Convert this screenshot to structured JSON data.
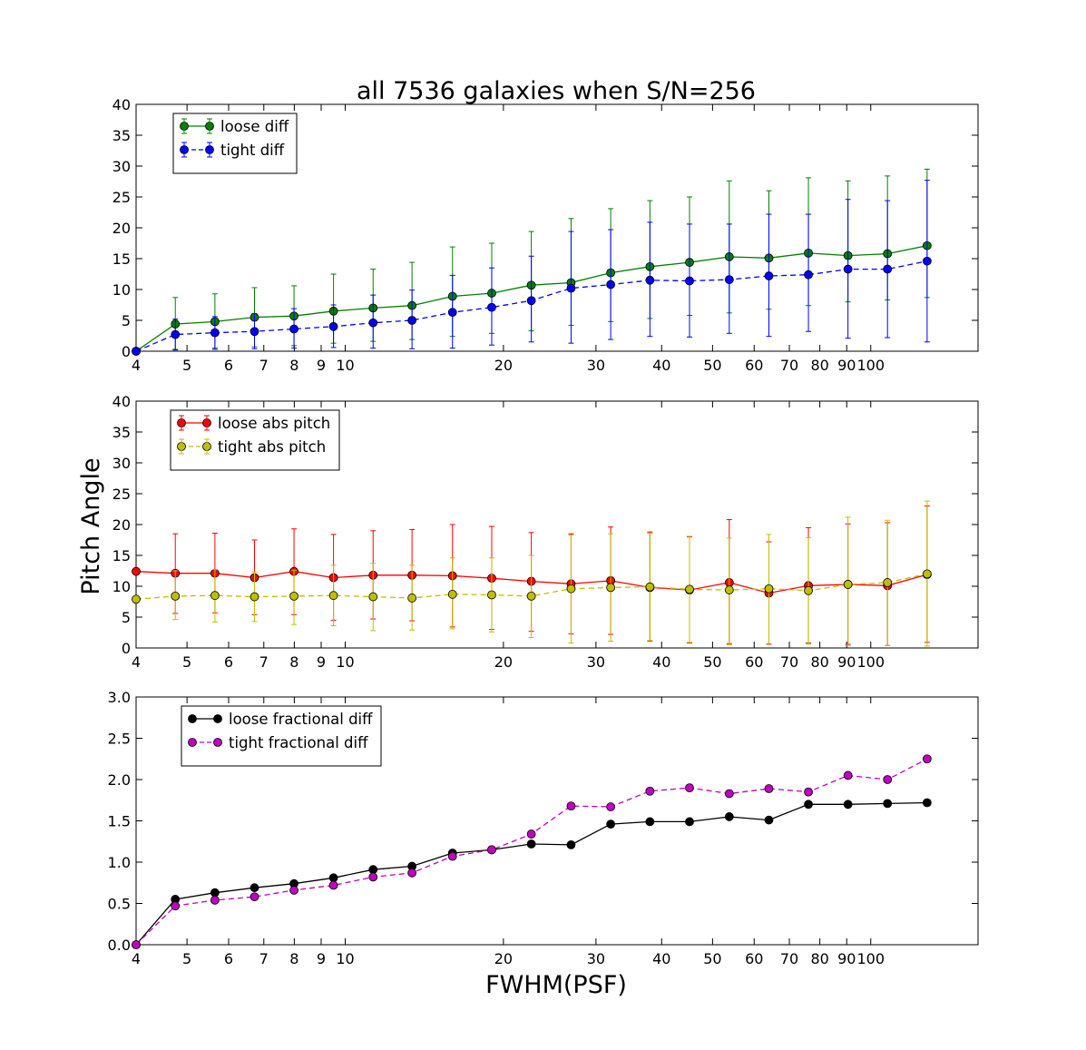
{
  "figure": {
    "title": "all 7536 galaxies when S/N=256",
    "ylabel": "Pitch Angle",
    "xlabel": "FWHM(PSF)"
  },
  "chart_data": [
    {
      "type": "line",
      "name": "top",
      "xscale": "log",
      "xlim": [
        4,
        160
      ],
      "ylim": [
        0,
        40
      ],
      "yticks": [
        "0",
        "5",
        "10",
        "15",
        "20",
        "25",
        "30",
        "35",
        "40"
      ],
      "xticks": [
        {
          "value": 4,
          "label": "4"
        },
        {
          "value": 5,
          "label": "5"
        },
        {
          "value": 6,
          "label": "6"
        },
        {
          "value": 7,
          "label": "7"
        },
        {
          "value": 8,
          "label": "8"
        },
        {
          "value": 9,
          "label": "9"
        },
        {
          "value": 10,
          "label": "10"
        },
        {
          "value": 20,
          "label": "20"
        },
        {
          "value": 30,
          "label": "30"
        },
        {
          "value": 40,
          "label": "40"
        },
        {
          "value": 50,
          "label": "50"
        },
        {
          "value": 60,
          "label": "60"
        },
        {
          "value": 70,
          "label": "70"
        },
        {
          "value": 80,
          "label": "80"
        },
        {
          "value": 90,
          "label": "90"
        },
        {
          "value": 100,
          "label": "100"
        }
      ],
      "x": [
        4,
        4.75,
        5.65,
        6.72,
        7.99,
        9.5,
        11.3,
        13.4,
        16.0,
        19.0,
        22.6,
        26.9,
        32.0,
        38.0,
        45.2,
        53.8,
        64.0,
        76.1,
        90.5,
        107.6,
        128.0
      ],
      "legend": "upper-left",
      "series": [
        {
          "name": "loose diff",
          "color": "#008000",
          "dashed": false,
          "errorbars": true,
          "values": [
            0,
            4.4,
            4.8,
            5.5,
            5.7,
            6.5,
            7.0,
            7.4,
            8.9,
            9.4,
            10.7,
            11.1,
            12.7,
            13.7,
            14.4,
            15.3,
            15.1,
            15.9,
            15.5,
            15.8,
            17.1
          ],
          "err_lo": [
            0,
            0.3,
            0.5,
            0.7,
            0.9,
            1.3,
            1.6,
            1.9,
            2.4,
            2.9,
            3.3,
            4.2,
            4.8,
            5.3,
            5.8,
            6.2,
            6.8,
            7.4,
            8.0,
            8.3,
            8.7
          ],
          "err_hi": [
            0,
            8.7,
            9.3,
            10.3,
            10.6,
            12.5,
            13.3,
            14.4,
            16.9,
            17.5,
            19.4,
            21.5,
            23.1,
            24.4,
            25.0,
            27.6,
            26.0,
            28.1,
            27.6,
            28.4,
            29.5
          ]
        },
        {
          "name": "tight diff",
          "color": "#0000ff",
          "dashed": true,
          "errorbars": true,
          "values": [
            0,
            2.7,
            3.0,
            3.2,
            3.6,
            4.0,
            4.6,
            5.0,
            6.3,
            7.1,
            8.2,
            10.2,
            10.8,
            11.5,
            11.4,
            11.6,
            12.2,
            12.4,
            13.3,
            13.3,
            14.6
          ],
          "err_lo": [
            0,
            0.2,
            0.3,
            0.4,
            0.5,
            0.6,
            0.5,
            0.4,
            0.5,
            1.0,
            1.5,
            1.3,
            1.9,
            2.4,
            2.3,
            2.9,
            2.4,
            3.2,
            2.1,
            2.2,
            1.5
          ],
          "err_hi": [
            0,
            5.2,
            5.6,
            6.1,
            6.9,
            7.5,
            9.1,
            9.9,
            12.3,
            13.5,
            15.4,
            19.4,
            19.7,
            20.9,
            20.6,
            20.6,
            22.2,
            22.2,
            24.6,
            24.4,
            27.7
          ]
        }
      ]
    },
    {
      "type": "line",
      "name": "middle",
      "xscale": "log",
      "xlim": [
        4,
        160
      ],
      "ylim": [
        0,
        40
      ],
      "yticks": [
        "0",
        "5",
        "10",
        "15",
        "20",
        "25",
        "30",
        "35",
        "40"
      ],
      "xticks": [
        {
          "value": 4,
          "label": "4"
        },
        {
          "value": 5,
          "label": "5"
        },
        {
          "value": 6,
          "label": "6"
        },
        {
          "value": 7,
          "label": "7"
        },
        {
          "value": 8,
          "label": "8"
        },
        {
          "value": 9,
          "label": "9"
        },
        {
          "value": 10,
          "label": "10"
        },
        {
          "value": 20,
          "label": "20"
        },
        {
          "value": 30,
          "label": "30"
        },
        {
          "value": 40,
          "label": "40"
        },
        {
          "value": 50,
          "label": "50"
        },
        {
          "value": 60,
          "label": "60"
        },
        {
          "value": 70,
          "label": "70"
        },
        {
          "value": 80,
          "label": "80"
        },
        {
          "value": 90,
          "label": "90"
        },
        {
          "value": 100,
          "label": "100"
        }
      ],
      "x": [
        4,
        4.75,
        5.65,
        6.72,
        7.99,
        9.5,
        11.3,
        13.4,
        16.0,
        19.0,
        22.6,
        26.9,
        32.0,
        38.0,
        45.2,
        53.8,
        64.0,
        76.1,
        90.5,
        107.6,
        128.0
      ],
      "legend": "upper-left",
      "series": [
        {
          "name": "loose abs pitch",
          "color": "#ff0000",
          "dashed": false,
          "errorbars": true,
          "values": [
            12.4,
            12.1,
            12.1,
            11.4,
            12.4,
            11.4,
            11.8,
            11.8,
            11.7,
            11.3,
            10.8,
            10.4,
            10.9,
            9.8,
            9.4,
            10.6,
            8.9,
            10.1,
            10.3,
            10.1,
            11.9
          ],
          "err_lo": [
            12.4,
            5.6,
            5.7,
            5.4,
            5.4,
            4.5,
            4.7,
            4.4,
            3.4,
            3.0,
            2.7,
            2.3,
            2.2,
            1.1,
            0.8,
            0.7,
            0.6,
            0.8,
            0.6,
            0.4,
            0.9
          ],
          "err_hi": [
            12.4,
            18.5,
            18.6,
            17.5,
            19.3,
            18.4,
            19.0,
            19.2,
            20.0,
            19.7,
            18.7,
            18.5,
            19.6,
            18.8,
            18.0,
            20.8,
            17.2,
            19.5,
            20.1,
            20.3,
            23.0
          ]
        },
        {
          "name": "tight abs pitch",
          "color": "#bfbf00",
          "dashed": true,
          "errorbars": true,
          "values": [
            7.9,
            8.4,
            8.5,
            8.3,
            8.4,
            8.5,
            8.3,
            8.1,
            8.7,
            8.6,
            8.4,
            9.6,
            9.8,
            9.9,
            9.5,
            9.4,
            9.6,
            9.3,
            10.3,
            10.6,
            12.0
          ],
          "err_lo": [
            7.9,
            4.6,
            4.2,
            4.3,
            3.8,
            3.6,
            2.8,
            2.9,
            3.1,
            2.6,
            1.7,
            0.8,
            1.1,
            1.2,
            0.9,
            0.5,
            0.7,
            0.6,
            0.4,
            0.4,
            0.3
          ],
          "err_hi": [
            7.9,
            12.5,
            12.7,
            12.3,
            12.6,
            13.4,
            13.7,
            13.4,
            14.6,
            14.6,
            15.0,
            18.3,
            18.5,
            18.6,
            18.1,
            17.8,
            18.4,
            17.9,
            21.2,
            20.7,
            23.8
          ]
        }
      ]
    },
    {
      "type": "line",
      "name": "bottom",
      "xscale": "log",
      "xlim": [
        4,
        160
      ],
      "ylim": [
        0,
        3
      ],
      "yticks": [
        "0.0",
        "0.5",
        "1.0",
        "1.5",
        "2.0",
        "2.5",
        "3.0"
      ],
      "xticks": [
        {
          "value": 4,
          "label": "4"
        },
        {
          "value": 5,
          "label": "5"
        },
        {
          "value": 6,
          "label": "6"
        },
        {
          "value": 7,
          "label": "7"
        },
        {
          "value": 8,
          "label": "8"
        },
        {
          "value": 9,
          "label": "9"
        },
        {
          "value": 10,
          "label": "10"
        },
        {
          "value": 20,
          "label": "20"
        },
        {
          "value": 30,
          "label": "30"
        },
        {
          "value": 40,
          "label": "40"
        },
        {
          "value": 50,
          "label": "50"
        },
        {
          "value": 60,
          "label": "60"
        },
        {
          "value": 70,
          "label": "70"
        },
        {
          "value": 80,
          "label": "80"
        },
        {
          "value": 90,
          "label": "90"
        },
        {
          "value": 100,
          "label": "100"
        }
      ],
      "x": [
        4,
        4.75,
        5.65,
        6.72,
        7.99,
        9.5,
        11.3,
        13.4,
        16.0,
        19.0,
        22.6,
        26.9,
        32.0,
        38.0,
        45.2,
        53.8,
        64.0,
        76.1,
        90.5,
        107.6,
        128.0
      ],
      "legend": "upper-left",
      "series": [
        {
          "name": "loose fractional diff",
          "color": "#000000",
          "dashed": false,
          "errorbars": false,
          "values": [
            0,
            0.55,
            0.63,
            0.69,
            0.74,
            0.81,
            0.91,
            0.95,
            1.11,
            1.15,
            1.22,
            1.21,
            1.46,
            1.49,
            1.49,
            1.55,
            1.51,
            1.7,
            1.7,
            1.71,
            1.72
          ]
        },
        {
          "name": "tight fractional diff",
          "color": "#bf00bf",
          "dashed": true,
          "errorbars": false,
          "values": [
            0,
            0.47,
            0.54,
            0.58,
            0.66,
            0.72,
            0.82,
            0.87,
            1.07,
            1.15,
            1.34,
            1.68,
            1.67,
            1.86,
            1.9,
            1.83,
            1.89,
            1.85,
            2.05,
            2.0,
            2.25
          ]
        }
      ]
    }
  ]
}
